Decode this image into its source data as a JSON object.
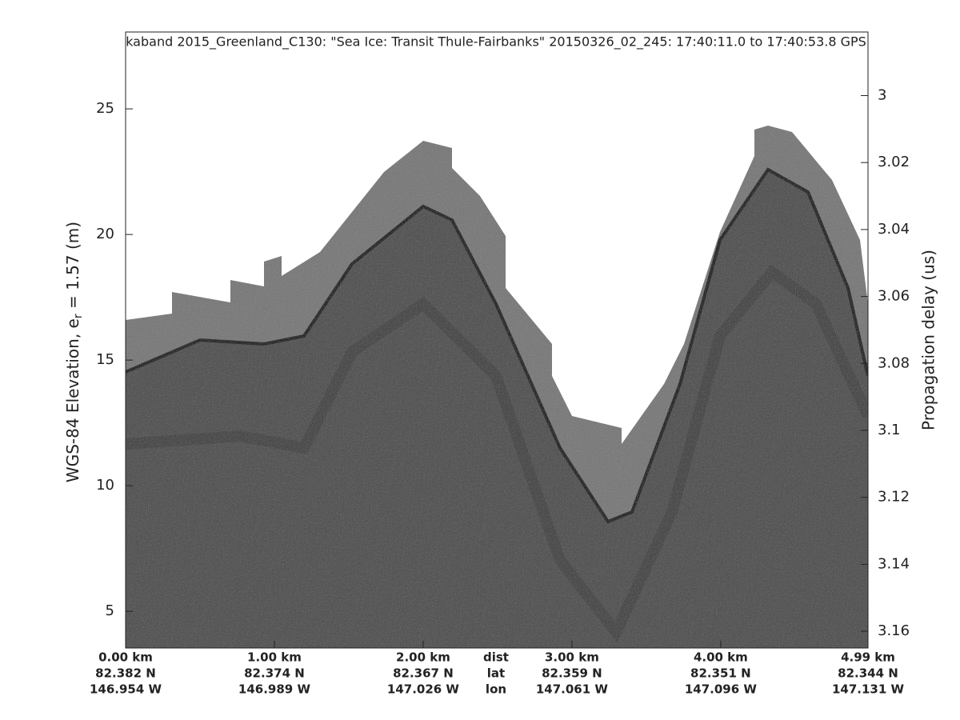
{
  "chart_data": {
    "type": "image",
    "title": "kaband 2015_Greenland_C130: \"Sea Ice: Transit Thule-Fairbanks\"  20150326_02_245: 17:40:11.0 to 17:40:53.8 GPS",
    "y_label": [
      "WGS-84 Elevation, e",
      "r",
      " = 1.57 (m)"
    ],
    "y2_label": "Propagation delay (us)",
    "xlim": [
      0,
      4.99
    ],
    "xticks": [
      {
        "value": 0,
        "label": "0.00 km"
      },
      {
        "value": 1,
        "label": "1.00 km"
      },
      {
        "value": 2,
        "label": "2.00 km"
      },
      {
        "value": 3,
        "label": "3.00 km"
      },
      {
        "value": 4,
        "label": "4.00 km"
      },
      {
        "value": 4.99,
        "label": "4.99 km"
      }
    ],
    "lat_labels": [
      "82.382 N",
      "82.374 N",
      "82.367 N",
      "82.359 N",
      "82.351 N",
      "82.344 N"
    ],
    "lon_labels": [
      "146.954 W",
      "146.989 W",
      "147.026 W",
      "147.061 W",
      "147.096 W",
      "147.131 W"
    ],
    "row_labels": [
      "dist",
      "lat",
      "lon"
    ],
    "ylim": [
      3.54,
      28.06
    ],
    "yticks": [
      5,
      10,
      15,
      20,
      25
    ],
    "y2lim": [
      3.165,
      2.981
    ],
    "y2ticks": [
      3,
      3.02,
      3.04,
      3.06,
      3.08,
      3.1,
      3.12,
      3.14,
      3.16
    ]
  }
}
